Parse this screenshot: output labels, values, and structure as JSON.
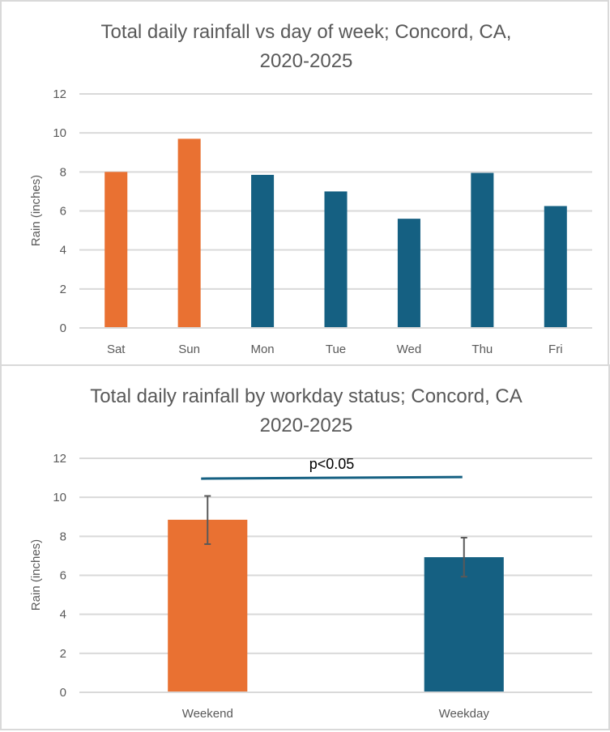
{
  "chart_data": [
    {
      "type": "bar",
      "title_lines": [
        "Total daily rainfall vs day of week; Concord, CA,",
        "2020-2025"
      ],
      "xlabel": "",
      "ylabel": "Rain (inches)",
      "ylim": [
        0,
        12
      ],
      "yticks": [
        0,
        2,
        4,
        6,
        8,
        10,
        12
      ],
      "grid": true,
      "legend": "none",
      "categories": [
        "Sat",
        "Sun",
        "Mon",
        "Tue",
        "Wed",
        "Thu",
        "Fri"
      ],
      "values": [
        8.0,
        9.7,
        7.85,
        7.0,
        5.6,
        7.95,
        6.25
      ],
      "bar_colors": [
        "#E97132",
        "#E97132",
        "#156082",
        "#156082",
        "#156082",
        "#156082",
        "#156082"
      ]
    },
    {
      "type": "bar",
      "title_lines": [
        "Total daily rainfall by workday status; Concord, CA",
        "2020-2025"
      ],
      "xlabel": "",
      "ylabel": "Rain (inches)",
      "ylim": [
        0,
        12
      ],
      "yticks": [
        0,
        2,
        4,
        6,
        8,
        10,
        12
      ],
      "grid": true,
      "legend": "none",
      "categories": [
        "Weekend",
        "Weekday"
      ],
      "values": [
        8.85,
        6.93
      ],
      "error_bars": [
        [
          7.6,
          10.07
        ],
        [
          5.93,
          7.93
        ]
      ],
      "bar_colors": [
        "#E97132",
        "#156082"
      ],
      "annotations": [
        {
          "text": "p<0.05",
          "type": "significance-bracket",
          "y_value": 11.0,
          "from": "Weekend",
          "to": "Weekday",
          "color": "#156082"
        }
      ]
    }
  ],
  "colors": {
    "weekend": "#E97132",
    "weekday": "#156082",
    "gridline": "#D9D9D9",
    "text": "#595959",
    "error_bar": "#595959"
  }
}
